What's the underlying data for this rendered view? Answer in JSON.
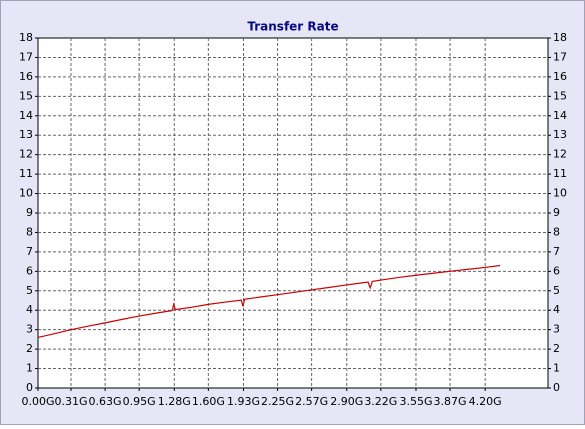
{
  "chart_data": {
    "type": "line",
    "title": "Transfer Rate",
    "x": [
      0,
      0.16,
      0.31,
      0.47,
      0.63,
      0.79,
      0.95,
      1.11,
      1.26,
      1.275,
      1.29,
      1.44,
      1.6,
      1.76,
      1.91,
      1.925,
      1.94,
      2.09,
      2.25,
      2.41,
      2.57,
      2.73,
      2.9,
      3.06,
      3.1,
      3.12,
      3.14,
      3.22,
      3.38,
      3.55,
      3.71,
      3.87,
      4.03,
      4.2,
      4.34
    ],
    "series": [
      {
        "name": "Transfer Rate",
        "color": "#cc0000",
        "values": [
          2.6,
          2.8,
          3.0,
          3.18,
          3.35,
          3.53,
          3.7,
          3.85,
          3.98,
          4.3,
          4.03,
          4.15,
          4.3,
          4.42,
          4.52,
          4.2,
          4.56,
          4.68,
          4.8,
          4.92,
          5.05,
          5.17,
          5.3,
          5.42,
          5.45,
          5.15,
          5.48,
          5.55,
          5.68,
          5.8,
          5.9,
          6.0,
          6.1,
          6.2,
          6.3
        ]
      }
    ],
    "xlim": [
      0,
      4.79
    ],
    "ylim": [
      0,
      18
    ],
    "xticks": [
      {
        "value": 0,
        "label": "0.00G"
      },
      {
        "value": 0.31,
        "label": "0.31G"
      },
      {
        "value": 0.63,
        "label": "0.63G"
      },
      {
        "value": 0.95,
        "label": "0.95G"
      },
      {
        "value": 1.28,
        "label": "1.28G"
      },
      {
        "value": 1.6,
        "label": "1.60G"
      },
      {
        "value": 1.93,
        "label": "1.93G"
      },
      {
        "value": 2.25,
        "label": "2.25G"
      },
      {
        "value": 2.57,
        "label": "2.57G"
      },
      {
        "value": 2.9,
        "label": "2.90G"
      },
      {
        "value": 3.22,
        "label": "3.22G"
      },
      {
        "value": 3.55,
        "label": "3.55G"
      },
      {
        "value": 3.87,
        "label": "3.87G"
      },
      {
        "value": 4.2,
        "label": "4.20G"
      }
    ],
    "yticks": [
      0,
      1,
      2,
      3,
      4,
      5,
      6,
      7,
      8,
      9,
      10,
      11,
      12,
      13,
      14,
      15,
      16,
      17,
      18
    ],
    "grid": true
  }
}
